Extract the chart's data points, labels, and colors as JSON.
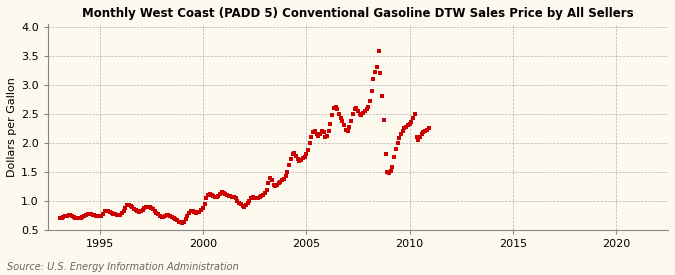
{
  "title": "Monthly West Coast (PADD 5) Conventional Gasoline DTW Sales Price by All Sellers",
  "ylabel": "Dollars per Gallon",
  "source": "Source: U.S. Energy Information Administration",
  "background_color": "#fef9ee",
  "marker_color": "#cc0000",
  "xlim": [
    1992.5,
    2022.5
  ],
  "ylim": [
    0.5,
    4.05
  ],
  "yticks": [
    0.5,
    1.0,
    1.5,
    2.0,
    2.5,
    3.0,
    3.5,
    4.0
  ],
  "xticks": [
    1995,
    2000,
    2005,
    2010,
    2015,
    2020
  ],
  "data": [
    [
      1993.083,
      0.71
    ],
    [
      1993.167,
      0.71
    ],
    [
      1993.25,
      0.72
    ],
    [
      1993.333,
      0.73
    ],
    [
      1993.417,
      0.74
    ],
    [
      1993.5,
      0.75
    ],
    [
      1993.583,
      0.75
    ],
    [
      1993.667,
      0.73
    ],
    [
      1993.75,
      0.72
    ],
    [
      1993.833,
      0.71
    ],
    [
      1993.917,
      0.7
    ],
    [
      1994.0,
      0.7
    ],
    [
      1994.083,
      0.71
    ],
    [
      1994.167,
      0.72
    ],
    [
      1994.25,
      0.74
    ],
    [
      1994.333,
      0.76
    ],
    [
      1994.417,
      0.78
    ],
    [
      1994.5,
      0.78
    ],
    [
      1994.583,
      0.77
    ],
    [
      1994.667,
      0.76
    ],
    [
      1994.75,
      0.75
    ],
    [
      1994.833,
      0.74
    ],
    [
      1994.917,
      0.73
    ],
    [
      1995.0,
      0.73
    ],
    [
      1995.083,
      0.74
    ],
    [
      1995.167,
      0.78
    ],
    [
      1995.25,
      0.82
    ],
    [
      1995.333,
      0.83
    ],
    [
      1995.417,
      0.82
    ],
    [
      1995.5,
      0.8
    ],
    [
      1995.583,
      0.79
    ],
    [
      1995.667,
      0.78
    ],
    [
      1995.75,
      0.77
    ],
    [
      1995.833,
      0.76
    ],
    [
      1995.917,
      0.75
    ],
    [
      1996.0,
      0.76
    ],
    [
      1996.083,
      0.79
    ],
    [
      1996.167,
      0.83
    ],
    [
      1996.25,
      0.88
    ],
    [
      1996.333,
      0.92
    ],
    [
      1996.417,
      0.93
    ],
    [
      1996.5,
      0.91
    ],
    [
      1996.583,
      0.89
    ],
    [
      1996.667,
      0.86
    ],
    [
      1996.75,
      0.84
    ],
    [
      1996.833,
      0.82
    ],
    [
      1996.917,
      0.81
    ],
    [
      1997.0,
      0.82
    ],
    [
      1997.083,
      0.84
    ],
    [
      1997.167,
      0.87
    ],
    [
      1997.25,
      0.89
    ],
    [
      1997.333,
      0.9
    ],
    [
      1997.417,
      0.89
    ],
    [
      1997.5,
      0.87
    ],
    [
      1997.583,
      0.85
    ],
    [
      1997.667,
      0.82
    ],
    [
      1997.75,
      0.79
    ],
    [
      1997.833,
      0.77
    ],
    [
      1997.917,
      0.74
    ],
    [
      1998.0,
      0.72
    ],
    [
      1998.083,
      0.72
    ],
    [
      1998.167,
      0.74
    ],
    [
      1998.25,
      0.76
    ],
    [
      1998.333,
      0.76
    ],
    [
      1998.417,
      0.74
    ],
    [
      1998.5,
      0.72
    ],
    [
      1998.583,
      0.7
    ],
    [
      1998.667,
      0.68
    ],
    [
      1998.75,
      0.66
    ],
    [
      1998.833,
      0.64
    ],
    [
      1998.917,
      0.63
    ],
    [
      1999.0,
      0.62
    ],
    [
      1999.083,
      0.64
    ],
    [
      1999.167,
      0.68
    ],
    [
      1999.25,
      0.74
    ],
    [
      1999.333,
      0.79
    ],
    [
      1999.417,
      0.82
    ],
    [
      1999.5,
      0.82
    ],
    [
      1999.583,
      0.8
    ],
    [
      1999.667,
      0.79
    ],
    [
      1999.75,
      0.8
    ],
    [
      1999.833,
      0.81
    ],
    [
      1999.917,
      0.84
    ],
    [
      2000.0,
      0.88
    ],
    [
      2000.083,
      0.95
    ],
    [
      2000.167,
      1.05
    ],
    [
      2000.25,
      1.1
    ],
    [
      2000.333,
      1.12
    ],
    [
      2000.417,
      1.1
    ],
    [
      2000.5,
      1.08
    ],
    [
      2000.583,
      1.07
    ],
    [
      2000.667,
      1.06
    ],
    [
      2000.75,
      1.08
    ],
    [
      2000.833,
      1.12
    ],
    [
      2000.917,
      1.15
    ],
    [
      2001.0,
      1.14
    ],
    [
      2001.083,
      1.12
    ],
    [
      2001.167,
      1.1
    ],
    [
      2001.25,
      1.09
    ],
    [
      2001.333,
      1.08
    ],
    [
      2001.417,
      1.07
    ],
    [
      2001.5,
      1.06
    ],
    [
      2001.583,
      1.05
    ],
    [
      2001.667,
      1.0
    ],
    [
      2001.75,
      0.97
    ],
    [
      2001.833,
      0.95
    ],
    [
      2001.917,
      0.91
    ],
    [
      2002.0,
      0.9
    ],
    [
      2002.083,
      0.92
    ],
    [
      2002.167,
      0.96
    ],
    [
      2002.25,
      1.0
    ],
    [
      2002.333,
      1.04
    ],
    [
      2002.417,
      1.07
    ],
    [
      2002.5,
      1.05
    ],
    [
      2002.583,
      1.04
    ],
    [
      2002.667,
      1.05
    ],
    [
      2002.75,
      1.06
    ],
    [
      2002.833,
      1.08
    ],
    [
      2002.917,
      1.1
    ],
    [
      2003.0,
      1.13
    ],
    [
      2003.083,
      1.18
    ],
    [
      2003.167,
      1.3
    ],
    [
      2003.25,
      1.4
    ],
    [
      2003.333,
      1.35
    ],
    [
      2003.417,
      1.28
    ],
    [
      2003.5,
      1.25
    ],
    [
      2003.583,
      1.27
    ],
    [
      2003.667,
      1.3
    ],
    [
      2003.75,
      1.33
    ],
    [
      2003.833,
      1.35
    ],
    [
      2003.917,
      1.38
    ],
    [
      2004.0,
      1.42
    ],
    [
      2004.083,
      1.5
    ],
    [
      2004.167,
      1.62
    ],
    [
      2004.25,
      1.72
    ],
    [
      2004.333,
      1.8
    ],
    [
      2004.417,
      1.82
    ],
    [
      2004.5,
      1.78
    ],
    [
      2004.583,
      1.72
    ],
    [
      2004.667,
      1.68
    ],
    [
      2004.75,
      1.7
    ],
    [
      2004.833,
      1.74
    ],
    [
      2004.917,
      1.76
    ],
    [
      2005.0,
      1.8
    ],
    [
      2005.083,
      1.88
    ],
    [
      2005.167,
      2.0
    ],
    [
      2005.25,
      2.1
    ],
    [
      2005.333,
      2.18
    ],
    [
      2005.417,
      2.2
    ],
    [
      2005.5,
      2.15
    ],
    [
      2005.583,
      2.12
    ],
    [
      2005.667,
      2.15
    ],
    [
      2005.75,
      2.2
    ],
    [
      2005.833,
      2.18
    ],
    [
      2005.917,
      2.1
    ],
    [
      2006.0,
      2.12
    ],
    [
      2006.083,
      2.2
    ],
    [
      2006.167,
      2.32
    ],
    [
      2006.25,
      2.48
    ],
    [
      2006.333,
      2.6
    ],
    [
      2006.417,
      2.62
    ],
    [
      2006.5,
      2.58
    ],
    [
      2006.583,
      2.5
    ],
    [
      2006.667,
      2.42
    ],
    [
      2006.75,
      2.38
    ],
    [
      2006.833,
      2.3
    ],
    [
      2006.917,
      2.22
    ],
    [
      2007.0,
      2.2
    ],
    [
      2007.083,
      2.28
    ],
    [
      2007.167,
      2.38
    ],
    [
      2007.25,
      2.5
    ],
    [
      2007.333,
      2.58
    ],
    [
      2007.417,
      2.6
    ],
    [
      2007.5,
      2.55
    ],
    [
      2007.583,
      2.5
    ],
    [
      2007.667,
      2.48
    ],
    [
      2007.75,
      2.52
    ],
    [
      2007.833,
      2.55
    ],
    [
      2007.917,
      2.58
    ],
    [
      2008.0,
      2.62
    ],
    [
      2008.083,
      2.72
    ],
    [
      2008.167,
      2.9
    ],
    [
      2008.25,
      3.1
    ],
    [
      2008.333,
      3.22
    ],
    [
      2008.417,
      3.3
    ],
    [
      2008.5,
      3.58
    ],
    [
      2008.583,
      3.2
    ],
    [
      2008.667,
      2.8
    ],
    [
      2008.75,
      2.4
    ],
    [
      2008.833,
      1.8
    ],
    [
      2008.917,
      1.5
    ],
    [
      2009.0,
      1.48
    ],
    [
      2009.083,
      1.52
    ],
    [
      2009.167,
      1.58
    ],
    [
      2009.25,
      1.75
    ],
    [
      2009.333,
      1.9
    ],
    [
      2009.417,
      2.0
    ],
    [
      2009.5,
      2.08
    ],
    [
      2009.583,
      2.15
    ],
    [
      2009.667,
      2.2
    ],
    [
      2009.75,
      2.25
    ],
    [
      2009.833,
      2.28
    ],
    [
      2009.917,
      2.3
    ],
    [
      2010.0,
      2.32
    ],
    [
      2010.083,
      2.35
    ],
    [
      2010.167,
      2.42
    ],
    [
      2010.25,
      2.5
    ],
    [
      2010.333,
      2.1
    ],
    [
      2010.417,
      2.05
    ],
    [
      2010.5,
      2.1
    ],
    [
      2010.583,
      2.15
    ],
    [
      2010.667,
      2.18
    ],
    [
      2010.75,
      2.2
    ],
    [
      2010.833,
      2.22
    ],
    [
      2010.917,
      2.25
    ]
  ]
}
